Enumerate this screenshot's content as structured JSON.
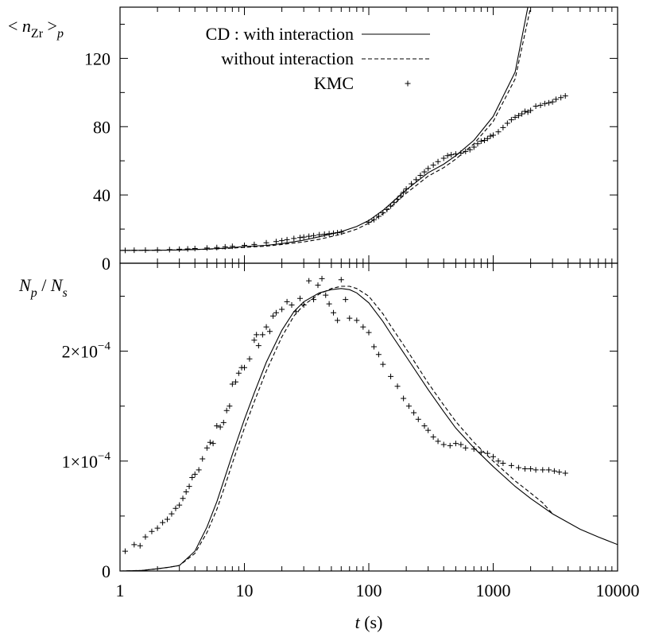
{
  "chart_data": [
    {
      "panel": "top",
      "type": "line",
      "ylabel": {
        "prefix": "< n",
        "sub": "Zr",
        "suffix": " >",
        "sub2": "p"
      },
      "x_scale": "log",
      "xlim": [
        1,
        10000
      ],
      "ylim": [
        0,
        150
      ],
      "y_ticks": [
        0,
        40,
        80,
        120
      ],
      "y_tick_labels": [
        "0",
        "40",
        "80",
        "120"
      ],
      "y_minor_ticks": [
        20,
        60,
        100,
        140
      ],
      "legend": {
        "position": "top-left",
        "entries": [
          {
            "series": 0,
            "label": "CD :  with interaction"
          },
          {
            "series": 1,
            "label": "without interaction"
          },
          {
            "series": 2,
            "label": "KMC"
          }
        ]
      },
      "series": [
        {
          "name": "CD : with interaction",
          "style": "solid",
          "x": [
            1,
            2,
            3,
            5,
            7,
            10,
            15,
            20,
            30,
            40,
            60,
            80,
            100,
            130,
            150,
            200,
            300,
            400,
            500,
            700,
            1000,
            1500,
            1900
          ],
          "y": [
            7.5,
            7.6,
            7.8,
            8.3,
            8.8,
            9.8,
            10.5,
            11.5,
            13.5,
            15.5,
            18.5,
            21.5,
            25,
            31,
            35,
            43,
            53,
            58,
            63,
            72,
            86,
            112,
            150
          ]
        },
        {
          "name": "CD : without interaction",
          "style": "dashed",
          "x": [
            1,
            2,
            3,
            5,
            7,
            10,
            15,
            20,
            30,
            40,
            60,
            80,
            100,
            130,
            150,
            200,
            300,
            400,
            500,
            700,
            1000,
            1500,
            2000
          ],
          "y": [
            7.5,
            7.6,
            7.8,
            8.2,
            8.6,
            9.3,
            10,
            11,
            12.5,
            14,
            17,
            20,
            23.5,
            29,
            33,
            41,
            51,
            56,
            61,
            70,
            83,
            108,
            150
          ]
        },
        {
          "name": "KMC",
          "style": "plus",
          "x": [
            1.1,
            1.3,
            1.6,
            2,
            2.5,
            3,
            3.5,
            4,
            5,
            6,
            7,
            8,
            10,
            12,
            15,
            18,
            20,
            22,
            25,
            28,
            30,
            33,
            36,
            40,
            44,
            48,
            52,
            56,
            60,
            100,
            110,
            120,
            130,
            140,
            150,
            160,
            170,
            180,
            190,
            200,
            220,
            240,
            260,
            280,
            300,
            330,
            360,
            400,
            430,
            460,
            500,
            550,
            600,
            650,
            700,
            750,
            800,
            850,
            900,
            950,
            1000,
            1100,
            1200,
            1300,
            1400,
            1500,
            1600,
            1700,
            1800,
            1900,
            2000,
            2200,
            2400,
            2600,
            2800,
            3000,
            3200,
            3500,
            3800
          ],
          "y": [
            7.5,
            7.6,
            7.7,
            7.8,
            8,
            8.2,
            8.4,
            8.6,
            8.9,
            9.2,
            9.6,
            9.9,
            10.5,
            11,
            12,
            12.7,
            13.2,
            13.8,
            14.5,
            15,
            15.3,
            15.8,
            16.2,
            16.7,
            17,
            17.3,
            17.6,
            17.9,
            18.2,
            24,
            25.5,
            27.5,
            29.5,
            31.5,
            33.5,
            35.5,
            37.5,
            39.5,
            41.5,
            43.5,
            46.5,
            49,
            51.5,
            53.5,
            55.5,
            57.5,
            59.5,
            61.5,
            63,
            63.5,
            64,
            64.5,
            65.5,
            66.5,
            68,
            70,
            71.5,
            72,
            73,
            74.5,
            75,
            77,
            79.5,
            82,
            84,
            85.5,
            86.5,
            87.5,
            89,
            88.5,
            89.5,
            92,
            92.5,
            93.5,
            94,
            94.5,
            96,
            97,
            98
          ]
        }
      ]
    },
    {
      "panel": "bottom",
      "type": "line",
      "ylabel": {
        "a": "N",
        "asub": "p",
        "sep": " / ",
        "b": "N",
        "bsub": "s"
      },
      "xlabel": {
        "var": "t",
        "unit": " (s)"
      },
      "x_scale": "log",
      "xlim": [
        1,
        10000
      ],
      "x_ticks": [
        1,
        10,
        100,
        1000,
        10000
      ],
      "x_tick_labels": [
        "1",
        "10",
        "100",
        "1000",
        "10000"
      ],
      "ylim": [
        0,
        0.00028
      ],
      "y_ticks": [
        0,
        0.0001,
        0.0002
      ],
      "y_tick_labels": [
        {
          "mant": "0",
          "exp": ""
        },
        {
          "mant": "1×10",
          "exp": "−4"
        },
        {
          "mant": "2×10",
          "exp": "−4"
        }
      ],
      "y_minor_ticks": [
        5e-05,
        0.00015,
        0.00025
      ],
      "series": [
        {
          "name": "CD : with interaction",
          "style": "solid",
          "x": [
            1,
            1.5,
            2,
            2.5,
            3,
            4,
            5,
            6,
            7,
            8,
            10,
            12,
            15,
            20,
            25,
            30,
            40,
            50,
            60,
            70,
            80,
            100,
            130,
            150,
            200,
            300,
            400,
            500,
            700,
            1000,
            1500,
            2000,
            3000,
            5000,
            7000,
            10000
          ],
          "y": [
            0,
            5e-07,
            2e-06,
            3.5e-06,
            5e-06,
            1.8e-05,
            4e-05,
            6.3e-05,
            8.6e-05,
            0.000106,
            0.000138,
            0.000162,
            0.00019,
            0.000219,
            0.000236,
            0.000245,
            0.000253,
            0.000256,
            0.000257,
            0.000256,
            0.000253,
            0.000244,
            0.000227,
            0.000216,
            0.000195,
            0.000165,
            0.000145,
            0.00013,
            0.000112,
            9.5e-05,
            7.7e-05,
            6.6e-05,
            5.2e-05,
            3.8e-05,
            3.1e-05,
            2.4e-05
          ]
        },
        {
          "name": "CD : without interaction",
          "style": "dashed",
          "x": [
            1,
            1.5,
            2,
            2.5,
            3,
            4,
            5,
            6,
            7,
            8,
            10,
            12,
            15,
            20,
            25,
            30,
            40,
            50,
            60,
            70,
            80,
            100,
            130,
            150,
            200,
            300,
            400,
            500,
            700,
            1000,
            1500,
            2000,
            2500,
            3000
          ],
          "y": [
            0,
            5e-07,
            2e-06,
            3.5e-06,
            5e-06,
            1.6e-05,
            3.5e-05,
            5.6e-05,
            7.8e-05,
            9.8e-05,
            0.00013,
            0.000154,
            0.000182,
            0.000213,
            0.000232,
            0.000242,
            0.000252,
            0.000257,
            0.000259,
            0.000259,
            0.000257,
            0.00025,
            0.000234,
            0.000223,
            0.000202,
            0.000171,
            0.000151,
            0.000136,
            0.000117,
            0.0001,
            8.2e-05,
            7.1e-05,
            6.2e-05,
            5.2e-05
          ]
        },
        {
          "name": "KMC",
          "style": "plus",
          "x": [
            1.1,
            1.3,
            1.45,
            1.6,
            1.8,
            2,
            2.2,
            2.4,
            2.6,
            2.8,
            3,
            3.2,
            3.4,
            3.6,
            3.8,
            4,
            4.3,
            4.6,
            5,
            5.3,
            5.6,
            6,
            6.4,
            6.8,
            7.2,
            7.6,
            8,
            8.5,
            9,
            9.5,
            10,
            11,
            12,
            12.5,
            13,
            14,
            15,
            16,
            17,
            18,
            20,
            22,
            24,
            26,
            28,
            30,
            33,
            36,
            39,
            42,
            45,
            48,
            52,
            56,
            60,
            65,
            70,
            80,
            90,
            100,
            110,
            120,
            130,
            150,
            170,
            190,
            210,
            230,
            250,
            280,
            300,
            330,
            360,
            400,
            450,
            500,
            550,
            600,
            700,
            800,
            900,
            1000,
            1100,
            1200,
            1400,
            1600,
            1800,
            2000,
            2200,
            2500,
            2800,
            3100,
            3400,
            3800
          ],
          "y": [
            1.8e-05,
            2.4e-05,
            2.3e-05,
            3.1e-05,
            3.6e-05,
            3.9e-05,
            4.4e-05,
            4.7e-05,
            5.2e-05,
            5.7e-05,
            6e-05,
            6.6e-05,
            7.2e-05,
            7.7e-05,
            8.5e-05,
            8.8e-05,
            9.2e-05,
            0.000102,
            0.000112,
            0.000117,
            0.000116,
            0.000132,
            0.000131,
            0.000135,
            0.000146,
            0.00015,
            0.00017,
            0.000172,
            0.00018,
            0.000185,
            0.000185,
            0.000193,
            0.00021,
            0.000215,
            0.000205,
            0.000215,
            0.000222,
            0.000218,
            0.000232,
            0.000235,
            0.000238,
            0.000245,
            0.000242,
            0.000236,
            0.000248,
            0.000242,
            0.000264,
            0.000247,
            0.00026,
            0.000266,
            0.000251,
            0.000243,
            0.000235,
            0.000228,
            0.000265,
            0.000247,
            0.00023,
            0.000228,
            0.000222,
            0.000217,
            0.000204,
            0.000197,
            0.000188,
            0.000177,
            0.000168,
            0.000157,
            0.00015,
            0.000144,
            0.000138,
            0.000132,
            0.000128,
            0.000122,
            0.000118,
            0.000115,
            0.000114,
            0.000116,
            0.000115,
            0.000112,
            0.000111,
            0.000108,
            0.000107,
            0.000104,
            0.0001,
            9.8e-05,
            9.6e-05,
            9.4e-05,
            9.3e-05,
            9.3e-05,
            9.2e-05,
            9.2e-05,
            9.2e-05,
            9.1e-05,
            9e-05,
            8.9e-05
          ]
        }
      ]
    }
  ]
}
